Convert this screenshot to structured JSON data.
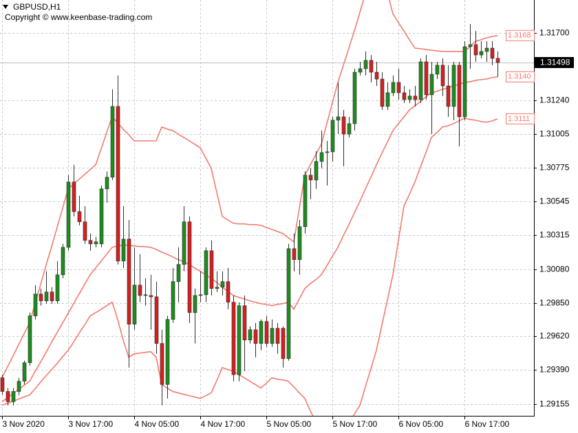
{
  "chart_data": {
    "type": "candlestick",
    "title": "GBPUSD,H1",
    "subtitle": "Copyright © www.keenbase-trading.com",
    "categories": [
      "3 Nov 2020",
      null,
      null,
      null,
      null,
      null,
      null,
      null,
      null,
      null,
      null,
      null,
      "3 Nov 17:00",
      null,
      null,
      null,
      null,
      null,
      null,
      null,
      null,
      null,
      null,
      null,
      "4 Nov 05:00",
      null,
      null,
      null,
      null,
      null,
      null,
      null,
      null,
      null,
      null,
      null,
      "4 Nov 17:00",
      null,
      null,
      null,
      null,
      null,
      null,
      null,
      null,
      null,
      null,
      null,
      "5 Nov 05:00",
      null,
      null,
      null,
      null,
      null,
      null,
      null,
      null,
      null,
      null,
      null,
      "5 Nov 17:00",
      null,
      null,
      null,
      null,
      null,
      null,
      null,
      null,
      null,
      null,
      null,
      "6 Nov 05:00",
      null,
      null,
      null,
      null,
      null,
      null,
      null,
      null,
      null,
      null,
      null,
      "6 Nov 17:00",
      null,
      null,
      null,
      null,
      null,
      null
    ],
    "open": [
      1.29336,
      1.29242,
      1.29172,
      1.29242,
      1.29312,
      1.29439,
      1.2976,
      1.2991,
      1.29863,
      1.29924,
      1.29863,
      1.30042,
      1.3023,
      1.30678,
      1.30475,
      1.30405,
      1.30278,
      1.30254,
      1.30254,
      1.30631,
      1.30711,
      1.31196,
      1.30136,
      1.30287,
      1.29703,
      1.29971,
      1.299,
      1.299,
      1.29891,
      1.29571,
      1.2929,
      1.29736,
      1.29995,
      1.30113,
      1.30405,
      1.29783,
      1.299,
      1.29905,
      1.30207,
      1.29948,
      1.29957,
      1.29995,
      1.29854,
      1.29357,
      1.2983,
      1.29595,
      1.29665,
      1.29571,
      1.29722,
      1.29571,
      1.29675,
      1.29675,
      1.29467,
      1.30221,
      1.30146,
      1.30372,
      1.30725,
      1.30692,
      1.30819,
      1.3088,
      1.30885,
      1.31102,
      1.31125,
      1.31007,
      1.31078,
      1.31431,
      1.31455,
      1.31512,
      1.31431,
      1.31384,
      1.31196,
      1.3129,
      1.31361,
      1.3129,
      1.31243,
      1.31267,
      1.31243,
      1.31502,
      1.31276,
      1.31417,
      1.31479,
      1.31337,
      1.31196,
      1.31479,
      1.31125,
      1.31606,
      1.3162,
      1.31549,
      1.31573,
      1.31596,
      1.31526
    ],
    "high": [
      1.29357,
      1.29265,
      1.29265,
      1.29336,
      1.29453,
      1.29783,
      1.29971,
      1.29948,
      1.30066,
      1.29957,
      1.30136,
      1.30254,
      1.30725,
      1.30796,
      1.30584,
      1.30513,
      1.30325,
      1.30301,
      1.30654,
      1.30751,
      1.31314,
      1.31408,
      1.30513,
      1.30418,
      1.3023,
      1.30183,
      1.30018,
      1.30042,
      1.29995,
      1.29665,
      1.2976,
      1.30089,
      1.3023,
      1.30513,
      1.30442,
      1.29948,
      1.30066,
      1.3023,
      1.30278,
      1.30066,
      1.30066,
      1.30089,
      1.299,
      1.29854,
      1.299,
      1.29689,
      1.29712,
      1.29736,
      1.2976,
      1.29736,
      1.29712,
      1.29689,
      1.30254,
      1.30325,
      1.30418,
      1.30751,
      1.30772,
      1.3089,
      1.31031,
      1.3096,
      1.31125,
      1.31361,
      1.31172,
      1.31125,
      1.31455,
      1.31502,
      1.31573,
      1.31549,
      1.31502,
      1.31431,
      1.31361,
      1.31408,
      1.31455,
      1.31337,
      1.31314,
      1.31337,
      1.31526,
      1.31549,
      1.31502,
      1.31502,
      1.31526,
      1.31479,
      1.31502,
      1.31502,
      1.31643,
      1.31761,
      1.31714,
      1.31643,
      1.31643,
      1.31643,
      1.31573
    ],
    "low": [
      1.29218,
      1.29147,
      1.29147,
      1.29218,
      1.2929,
      1.2942,
      1.29736,
      1.2983,
      1.29844,
      1.29844,
      1.29844,
      1.30018,
      1.30207,
      1.30442,
      1.30381,
      1.30254,
      1.30207,
      1.3023,
      1.3023,
      1.30537,
      1.30692,
      1.30113,
      1.30089,
      1.29406,
      1.29665,
      1.29854,
      1.2983,
      1.29665,
      1.295,
      1.29147,
      1.29194,
      1.29712,
      1.29854,
      1.30066,
      1.29712,
      1.29571,
      1.29854,
      1.29854,
      1.299,
      1.29924,
      1.299,
      1.29806,
      1.29312,
      1.29312,
      1.29382,
      1.29571,
      1.29477,
      1.29524,
      1.29548,
      1.29548,
      1.295,
      1.29406,
      1.29453,
      1.30066,
      1.30042,
      1.30325,
      1.3056,
      1.30631,
      1.30772,
      1.30654,
      1.30819,
      1.31007,
      1.30786,
      1.30984,
      1.31031,
      1.31408,
      1.31408,
      1.31361,
      1.31337,
      1.31172,
      1.31172,
      1.31267,
      1.31243,
      1.3122,
      1.3122,
      1.31196,
      1.3122,
      1.31243,
      1.31007,
      1.31384,
      1.31267,
      1.31125,
      1.31102,
      1.30923,
      1.31102,
      1.31455,
      1.31502,
      1.31526,
      1.31502,
      1.31479,
      1.31399
    ],
    "close": [
      1.29242,
      1.29172,
      1.29242,
      1.29312,
      1.29439,
      1.2976,
      1.2991,
      1.29863,
      1.29924,
      1.29863,
      1.30042,
      1.3023,
      1.30678,
      1.30475,
      1.30405,
      1.30278,
      1.30254,
      1.30268,
      1.30631,
      1.30711,
      1.31196,
      1.30136,
      1.30287,
      1.29703,
      1.29971,
      1.299,
      1.29905,
      1.29891,
      1.29571,
      1.2929,
      1.29736,
      1.29995,
      1.30113,
      1.30405,
      1.29783,
      1.299,
      1.29905,
      1.30207,
      1.29948,
      1.29957,
      1.29995,
      1.29854,
      1.29357,
      1.2983,
      1.29595,
      1.29665,
      1.29571,
      1.29722,
      1.29571,
      1.29675,
      1.29571,
      1.29467,
      1.30221,
      1.30146,
      1.30372,
      1.30725,
      1.30692,
      1.30819,
      1.3088,
      1.30885,
      1.31102,
      1.31125,
      1.31007,
      1.31078,
      1.31431,
      1.31455,
      1.31512,
      1.31431,
      1.31384,
      1.31196,
      1.3129,
      1.31361,
      1.3129,
      1.31243,
      1.31267,
      1.31243,
      1.31502,
      1.31276,
      1.31417,
      1.31479,
      1.31337,
      1.31196,
      1.31479,
      1.31125,
      1.31606,
      1.3162,
      1.31549,
      1.31573,
      1.31596,
      1.31526,
      1.31498
    ],
    "up_color": "#1e8c1e",
    "down_color": "#d42020",
    "wick_color": "#2b2b2b",
    "series": [
      {
        "type": "line",
        "color": "#f27a6e",
        "last_label": "1.3168",
        "values": [
          1.29336,
          1.29411,
          1.29486,
          1.29562,
          1.29637,
          1.29712,
          1.29844,
          1.29976,
          1.30108,
          1.30235,
          1.30367,
          1.30499,
          1.30631,
          1.30664,
          1.30697,
          1.3073,
          1.30763,
          1.30796,
          1.30905,
          1.31017,
          1.31125,
          1.31083,
          1.31041,
          1.31003,
          1.3096,
          1.3096,
          1.3096,
          1.3096,
          1.3096,
          1.31055,
          1.31041,
          1.31031,
          1.31007,
          1.30984,
          1.3096,
          1.30937,
          1.30913,
          1.30843,
          1.30772,
          1.30607,
          1.30442,
          1.30418,
          1.30395,
          1.30391,
          1.30391,
          1.30386,
          1.30386,
          1.30381,
          1.30367,
          1.30353,
          1.30339,
          1.30325,
          1.30296,
          1.30268,
          1.30499,
          1.30725,
          1.30796,
          1.30866,
          1.30937,
          1.31078,
          1.3122,
          1.31361,
          1.31479,
          1.31596,
          1.31714,
          1.31841,
          1.31973,
          1.31973,
          1.31973,
          1.31973,
          1.31973,
          1.31832,
          1.31771,
          1.31714,
          1.31653,
          1.31596,
          1.31592,
          1.31587,
          1.31582,
          1.31577,
          1.31573,
          1.31573,
          1.31573,
          1.31573,
          1.31573,
          1.31606,
          1.31643,
          1.31653,
          1.31667,
          1.31676,
          1.31682
        ]
      },
      {
        "type": "line",
        "color": "#f27a6e",
        "last_label": "1.3140",
        "values": [
          1.29172,
          1.29199,
          1.29227,
          1.29256,
          1.29284,
          1.29312,
          1.29378,
          1.29444,
          1.2951,
          1.2958,
          1.29646,
          1.29712,
          1.29778,
          1.29844,
          1.2991,
          1.29976,
          1.30042,
          1.30089,
          1.30136,
          1.30183,
          1.3023,
          1.3024,
          1.30245,
          1.30245,
          1.3024,
          1.30235,
          1.30235,
          1.3023,
          1.30216,
          1.30197,
          1.30183,
          1.30164,
          1.30146,
          1.30131,
          1.30113,
          1.30089,
          1.30066,
          1.30042,
          1.30018,
          1.2999,
          1.29957,
          1.29929,
          1.299,
          1.29887,
          1.29877,
          1.29863,
          1.29854,
          1.29844,
          1.29839,
          1.2983,
          1.29839,
          1.29844,
          1.29854,
          1.29806,
          1.29877,
          1.29948,
          1.29981,
          1.30009,
          1.30042,
          1.30103,
          1.30169,
          1.3023,
          1.30311,
          1.30386,
          1.30466,
          1.30546,
          1.30631,
          1.30711,
          1.30796,
          1.30876,
          1.30951,
          1.31031,
          1.31078,
          1.31125,
          1.31172,
          1.31201,
          1.31229,
          1.31262,
          1.3129,
          1.313,
          1.31314,
          1.31323,
          1.31337,
          1.31347,
          1.31361,
          1.31365,
          1.31375,
          1.3138,
          1.31384,
          1.31394,
          1.31399
        ]
      },
      {
        "type": "line",
        "color": "#f27a6e",
        "last_label": "1.3111",
        "values": [
          1.29147,
          1.29161,
          1.29175,
          1.2919,
          1.29204,
          1.29218,
          1.2926,
          1.29307,
          1.2935,
          1.29392,
          1.29434,
          1.29481,
          1.29524,
          1.2958,
          1.29642,
          1.29698,
          1.2976,
          1.29783,
          1.29806,
          1.2983,
          1.29854,
          1.29736,
          1.29595,
          1.29477,
          1.295,
          1.29505,
          1.2951,
          1.29515,
          1.29477,
          1.2929,
          1.29265,
          1.29242,
          1.29232,
          1.29222,
          1.29213,
          1.29204,
          1.29194,
          1.29213,
          1.29232,
          1.29317,
          1.29406,
          1.29392,
          1.29382,
          1.29357,
          1.29336,
          1.29312,
          1.2929,
          1.29265,
          1.29298,
          1.29336,
          1.29326,
          1.29321,
          1.29312,
          1.29274,
          1.29232,
          1.29194,
          1.29109,
          1.2903,
          1.2903,
          1.2903,
          1.2903,
          1.2903,
          1.2903,
          1.2903,
          1.29086,
          1.29147,
          1.29274,
          1.29397,
          1.29524,
          1.29698,
          1.29868,
          1.30042,
          1.30278,
          1.30513,
          1.30593,
          1.30678,
          1.30781,
          1.3088,
          1.30984,
          1.31017,
          1.31055,
          1.31064,
          1.31078,
          1.31097,
          1.31116,
          1.31107,
          1.31102,
          1.31093,
          1.31088,
          1.31097,
          1.31111
        ]
      }
    ],
    "last_price": {
      "value": 1.31498,
      "label": "1.31498"
    },
    "ylim": [
      1.29075,
      1.31926
    ],
    "yticks": [
      {
        "value": 1.317,
        "label": "1.31700"
      },
      {
        "value": 1.3124,
        "label": "1.31240"
      },
      {
        "value": 1.31005,
        "label": "1.31005"
      },
      {
        "value": 1.30775,
        "label": "1.30775"
      },
      {
        "value": 1.30545,
        "label": "1.30545"
      },
      {
        "value": 1.30315,
        "label": "1.30315"
      },
      {
        "value": 1.3008,
        "label": "1.30080"
      },
      {
        "value": 1.2985,
        "label": "1.29850"
      },
      {
        "value": 1.2962,
        "label": "1.29620"
      },
      {
        "value": 1.2939,
        "label": "1.29390"
      },
      {
        "value": 1.29155,
        "label": "1.29155"
      }
    ],
    "grid": true
  }
}
